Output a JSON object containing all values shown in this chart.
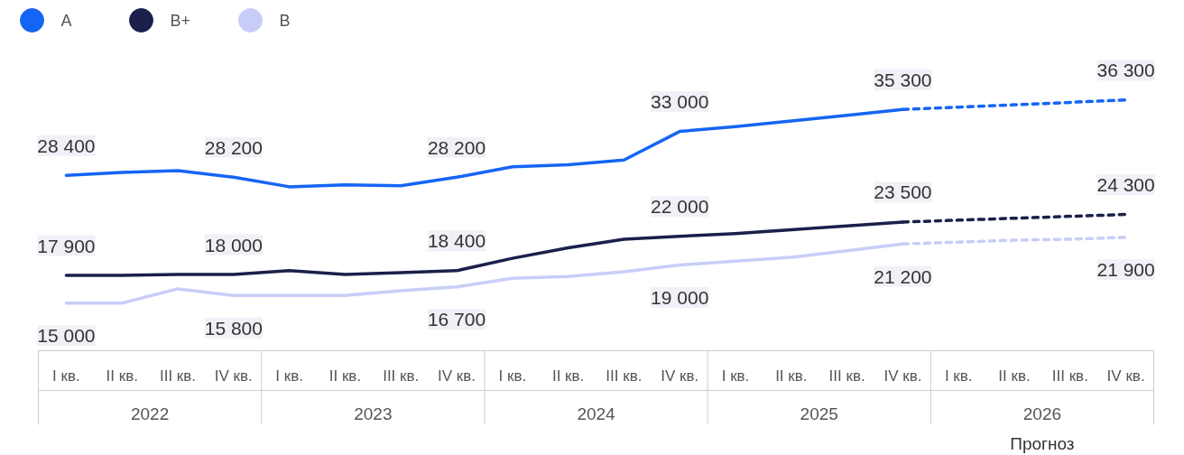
{
  "chart_data": {
    "type": "line",
    "categories": [
      "I кв.",
      "II кв.",
      "III кв.",
      "IV кв.",
      "I кв.",
      "II кв.",
      "III кв.",
      "IV кв.",
      "I кв.",
      "II кв.",
      "III кв.",
      "IV кв.",
      "I кв.",
      "II кв.",
      "III кв.",
      "IV кв.",
      "I кв.",
      "II кв.",
      "III кв.",
      "IV кв."
    ],
    "series": [
      {
        "name": "A",
        "color": "#1565f5",
        "line_style": "solid",
        "values": [
          28400,
          28700,
          28900,
          28200,
          27200,
          27400,
          27300,
          28200,
          29300,
          29500,
          30000,
          33000,
          33500,
          34100,
          34700,
          35300,
          null,
          null,
          null,
          null
        ],
        "value_labels": [
          "28 400",
          null,
          null,
          "28 200",
          null,
          null,
          null,
          "28 200",
          null,
          null,
          null,
          "33 000",
          null,
          null,
          null,
          "35 300",
          null,
          null,
          null,
          null
        ]
      },
      {
        "color": "#1565f5",
        "line_style": "dashed",
        "values": [
          null,
          null,
          null,
          null,
          null,
          null,
          null,
          null,
          null,
          null,
          null,
          null,
          null,
          null,
          null,
          35300,
          35550,
          35800,
          36050,
          36300
        ],
        "value_labels": [
          null,
          null,
          null,
          null,
          null,
          null,
          null,
          null,
          null,
          null,
          null,
          null,
          null,
          null,
          null,
          null,
          null,
          null,
          null,
          "36 300"
        ]
      },
      {
        "name": "B+",
        "color": "#1b1f4b",
        "line_style": "solid",
        "values": [
          17900,
          17900,
          18000,
          18000,
          18400,
          18000,
          18200,
          18400,
          19700,
          20800,
          21700,
          22000,
          22300,
          22700,
          23100,
          23500,
          null,
          null,
          null,
          null
        ],
        "value_labels": [
          "17 900",
          null,
          null,
          "18 000",
          null,
          null,
          null,
          "18 400",
          null,
          null,
          null,
          "22 000",
          null,
          null,
          null,
          "23 500",
          null,
          null,
          null,
          null
        ]
      },
      {
        "color": "#1b1f4b",
        "line_style": "dashed",
        "values": [
          null,
          null,
          null,
          null,
          null,
          null,
          null,
          null,
          null,
          null,
          null,
          null,
          null,
          null,
          null,
          23500,
          23700,
          23900,
          24100,
          24300
        ],
        "value_labels": [
          null,
          null,
          null,
          null,
          null,
          null,
          null,
          null,
          null,
          null,
          null,
          null,
          null,
          null,
          null,
          null,
          null,
          null,
          null,
          "24 300"
        ]
      },
      {
        "name": "B",
        "color": "#c8cdf8",
        "line_style": "solid",
        "values": [
          15000,
          15000,
          16500,
          15800,
          15800,
          15800,
          16300,
          16700,
          17600,
          17800,
          18300,
          19000,
          19400,
          19800,
          20500,
          21200,
          null,
          null,
          null,
          null
        ],
        "value_labels": [
          "15 000",
          null,
          null,
          "15 800",
          null,
          null,
          null,
          "16 700",
          null,
          null,
          null,
          "19 000",
          null,
          null,
          null,
          "21 200",
          null,
          null,
          null,
          null
        ]
      },
      {
        "color": "#c8cdf8",
        "line_style": "dashed",
        "values": [
          null,
          null,
          null,
          null,
          null,
          null,
          null,
          null,
          null,
          null,
          null,
          null,
          null,
          null,
          null,
          21200,
          21400,
          21600,
          21700,
          21900
        ],
        "value_labels": [
          null,
          null,
          null,
          null,
          null,
          null,
          null,
          null,
          null,
          null,
          null,
          null,
          null,
          null,
          null,
          null,
          null,
          null,
          null,
          "21 900"
        ]
      }
    ],
    "legend": "top left",
    "grid": false,
    "marker": "none",
    "annotations": [
      "2022",
      "2023",
      "2024",
      "2025",
      "2026",
      "Прогноз"
    ]
  }
}
